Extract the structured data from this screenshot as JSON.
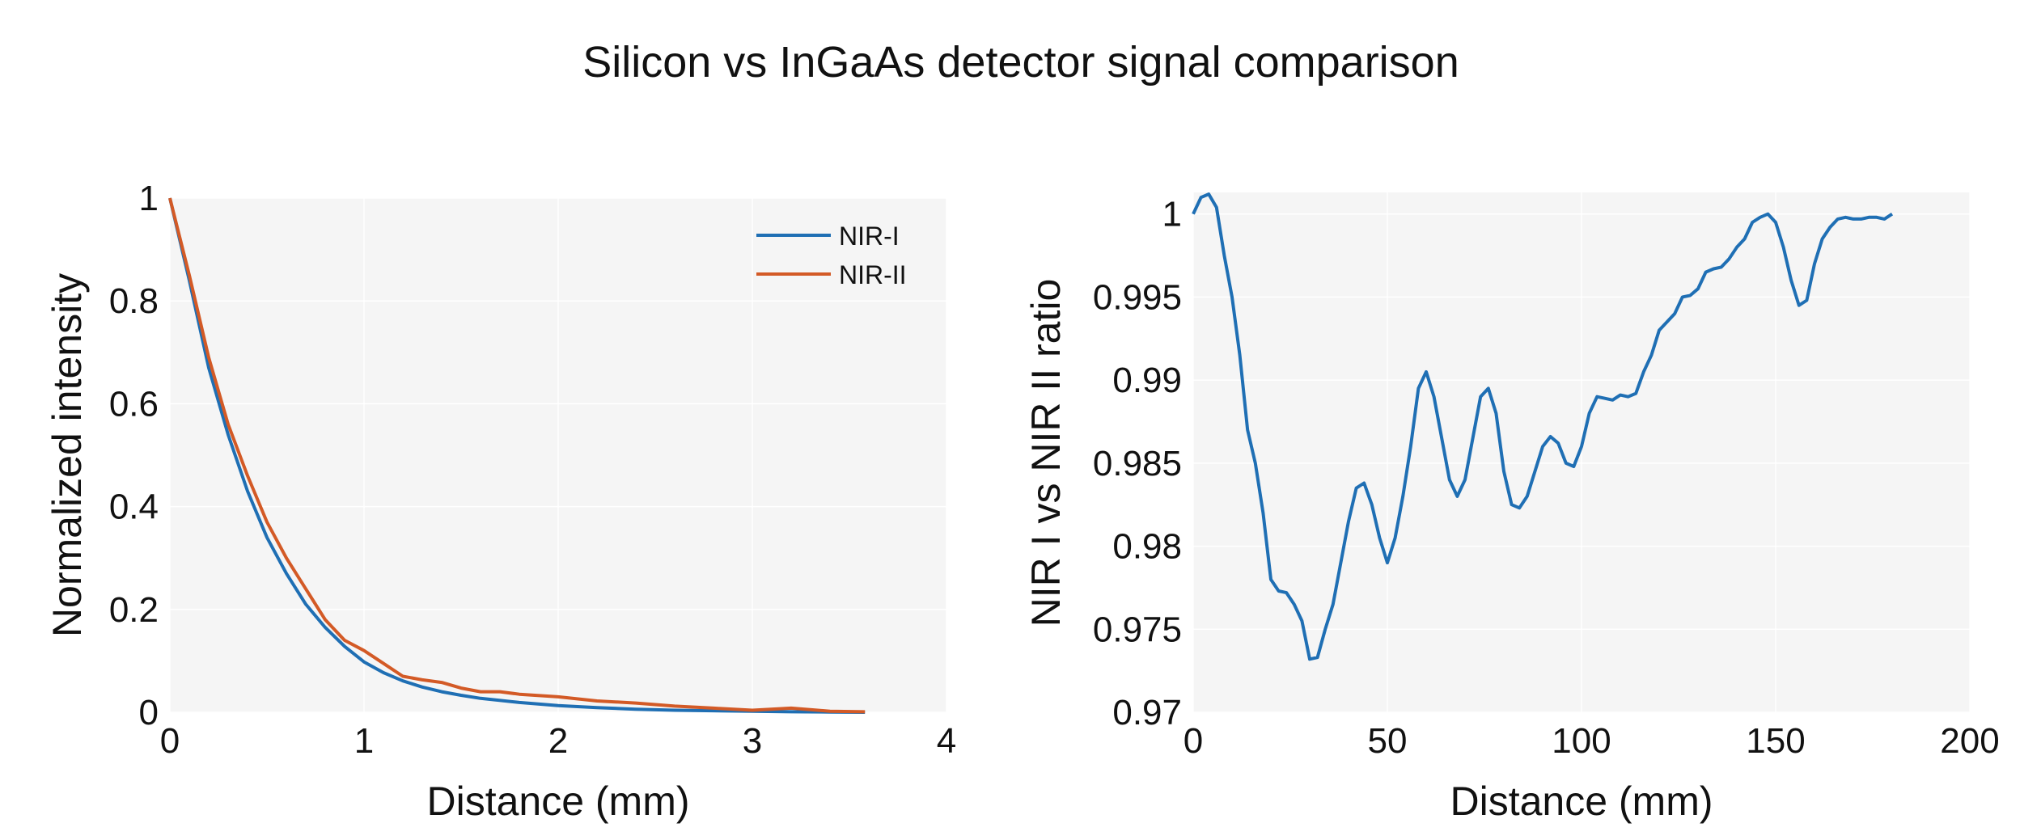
{
  "figure_title": "Silicon vs InGaAs detector signal comparison",
  "colors": {
    "nir1": "#1f6fb4",
    "nir2": "#d35a26",
    "plot_bg": "#f5f5f5"
  },
  "chart_data": [
    {
      "type": "line",
      "xlabel": "Distance (mm)",
      "ylabel": "Normalized intensity",
      "xlim": [
        0,
        4
      ],
      "ylim": [
        0,
        1
      ],
      "xticks": [
        0,
        1,
        2,
        3,
        4
      ],
      "xtick_labels": [
        "0",
        "1",
        "2",
        "3",
        "4"
      ],
      "yticks": [
        0,
        0.2,
        0.4,
        0.6,
        0.8,
        1
      ],
      "ytick_labels": [
        "0",
        "0.2",
        "0.4",
        "0.6",
        "0.8",
        "1"
      ],
      "legend_position": "top-right",
      "series": [
        {
          "name": "NIR-I",
          "color": "#1f6fb4",
          "x": [
            0,
            0.1,
            0.2,
            0.3,
            0.4,
            0.5,
            0.6,
            0.7,
            0.8,
            0.9,
            1.0,
            1.1,
            1.2,
            1.3,
            1.4,
            1.5,
            1.6,
            1.8,
            2.0,
            2.2,
            2.4,
            2.6,
            2.8,
            3.0,
            3.2,
            3.4,
            3.58
          ],
          "y": [
            1.0,
            0.84,
            0.67,
            0.54,
            0.43,
            0.34,
            0.27,
            0.21,
            0.165,
            0.128,
            0.098,
            0.077,
            0.061,
            0.049,
            0.04,
            0.033,
            0.027,
            0.019,
            0.013,
            0.009,
            0.006,
            0.004,
            0.003,
            0.002,
            0.001,
            0.0005,
            0.0
          ]
        },
        {
          "name": "NIR-II",
          "color": "#d35a26",
          "x": [
            0,
            0.1,
            0.2,
            0.3,
            0.4,
            0.5,
            0.6,
            0.7,
            0.8,
            0.9,
            1.0,
            1.1,
            1.2,
            1.3,
            1.4,
            1.5,
            1.6,
            1.7,
            1.8,
            2.0,
            2.2,
            2.4,
            2.6,
            2.8,
            3.0,
            3.2,
            3.4,
            3.58
          ],
          "y": [
            1.0,
            0.85,
            0.69,
            0.56,
            0.46,
            0.37,
            0.3,
            0.24,
            0.18,
            0.14,
            0.12,
            0.095,
            0.07,
            0.063,
            0.058,
            0.047,
            0.04,
            0.04,
            0.035,
            0.03,
            0.022,
            0.018,
            0.012,
            0.008,
            0.004,
            0.008,
            0.002,
            0.001
          ]
        }
      ]
    },
    {
      "type": "line",
      "xlabel": "Distance (mm)",
      "ylabel": "NIR I vs NIR II ratio",
      "xlim": [
        0,
        200
      ],
      "ylim": [
        0.97,
        1.0013
      ],
      "xticks": [
        0,
        50,
        100,
        150,
        200
      ],
      "xtick_labels": [
        "0",
        "50",
        "100",
        "150",
        "200"
      ],
      "yticks": [
        0.97,
        0.975,
        0.98,
        0.985,
        0.99,
        0.995,
        1
      ],
      "ytick_labels": [
        "0.97",
        "0.975",
        "0.98",
        "0.985",
        "0.99",
        "0.995",
        "1"
      ],
      "series": [
        {
          "name": "ratio",
          "color": "#1f6fb4",
          "x": [
            0,
            2,
            4,
            6,
            8,
            10,
            12,
            14,
            16,
            18,
            20,
            22,
            24,
            26,
            28,
            30,
            32,
            34,
            36,
            38,
            40,
            42,
            44,
            46,
            48,
            50,
            52,
            54,
            56,
            58,
            60,
            62,
            64,
            66,
            68,
            70,
            72,
            74,
            76,
            78,
            80,
            82,
            84,
            86,
            88,
            90,
            92,
            94,
            96,
            98,
            100,
            102,
            104,
            106,
            108,
            110,
            112,
            114,
            116,
            118,
            120,
            122,
            124,
            126,
            128,
            130,
            132,
            134,
            136,
            138,
            140,
            142,
            144,
            146,
            148,
            150,
            152,
            154,
            156,
            158,
            160,
            162,
            164,
            166,
            168,
            170,
            172,
            174,
            176,
            178,
            180
          ],
          "y": [
            1.0,
            1.001,
            1.0012,
            1.0004,
            0.9975,
            0.995,
            0.9915,
            0.987,
            0.985,
            0.982,
            0.978,
            0.9773,
            0.9772,
            0.9765,
            0.9755,
            0.9732,
            0.9733,
            0.975,
            0.9765,
            0.979,
            0.9815,
            0.9835,
            0.9838,
            0.9825,
            0.9805,
            0.979,
            0.9805,
            0.983,
            0.986,
            0.9895,
            0.9905,
            0.989,
            0.9865,
            0.984,
            0.983,
            0.984,
            0.9865,
            0.989,
            0.9895,
            0.988,
            0.9845,
            0.9825,
            0.9823,
            0.983,
            0.9845,
            0.986,
            0.9866,
            0.9862,
            0.985,
            0.9848,
            0.986,
            0.988,
            0.989,
            0.9889,
            0.9888,
            0.9891,
            0.989,
            0.9892,
            0.9905,
            0.9915,
            0.993,
            0.9935,
            0.994,
            0.995,
            0.9951,
            0.9955,
            0.9965,
            0.9967,
            0.9968,
            0.9973,
            0.998,
            0.9985,
            0.9995,
            0.9998,
            1.0,
            0.9995,
            0.998,
            0.996,
            0.9945,
            0.9948,
            0.997,
            0.9985,
            0.9992,
            0.9997,
            0.9998,
            0.9997,
            0.9997,
            0.9998,
            0.9998,
            0.9997,
            1.0
          ]
        }
      ]
    }
  ]
}
